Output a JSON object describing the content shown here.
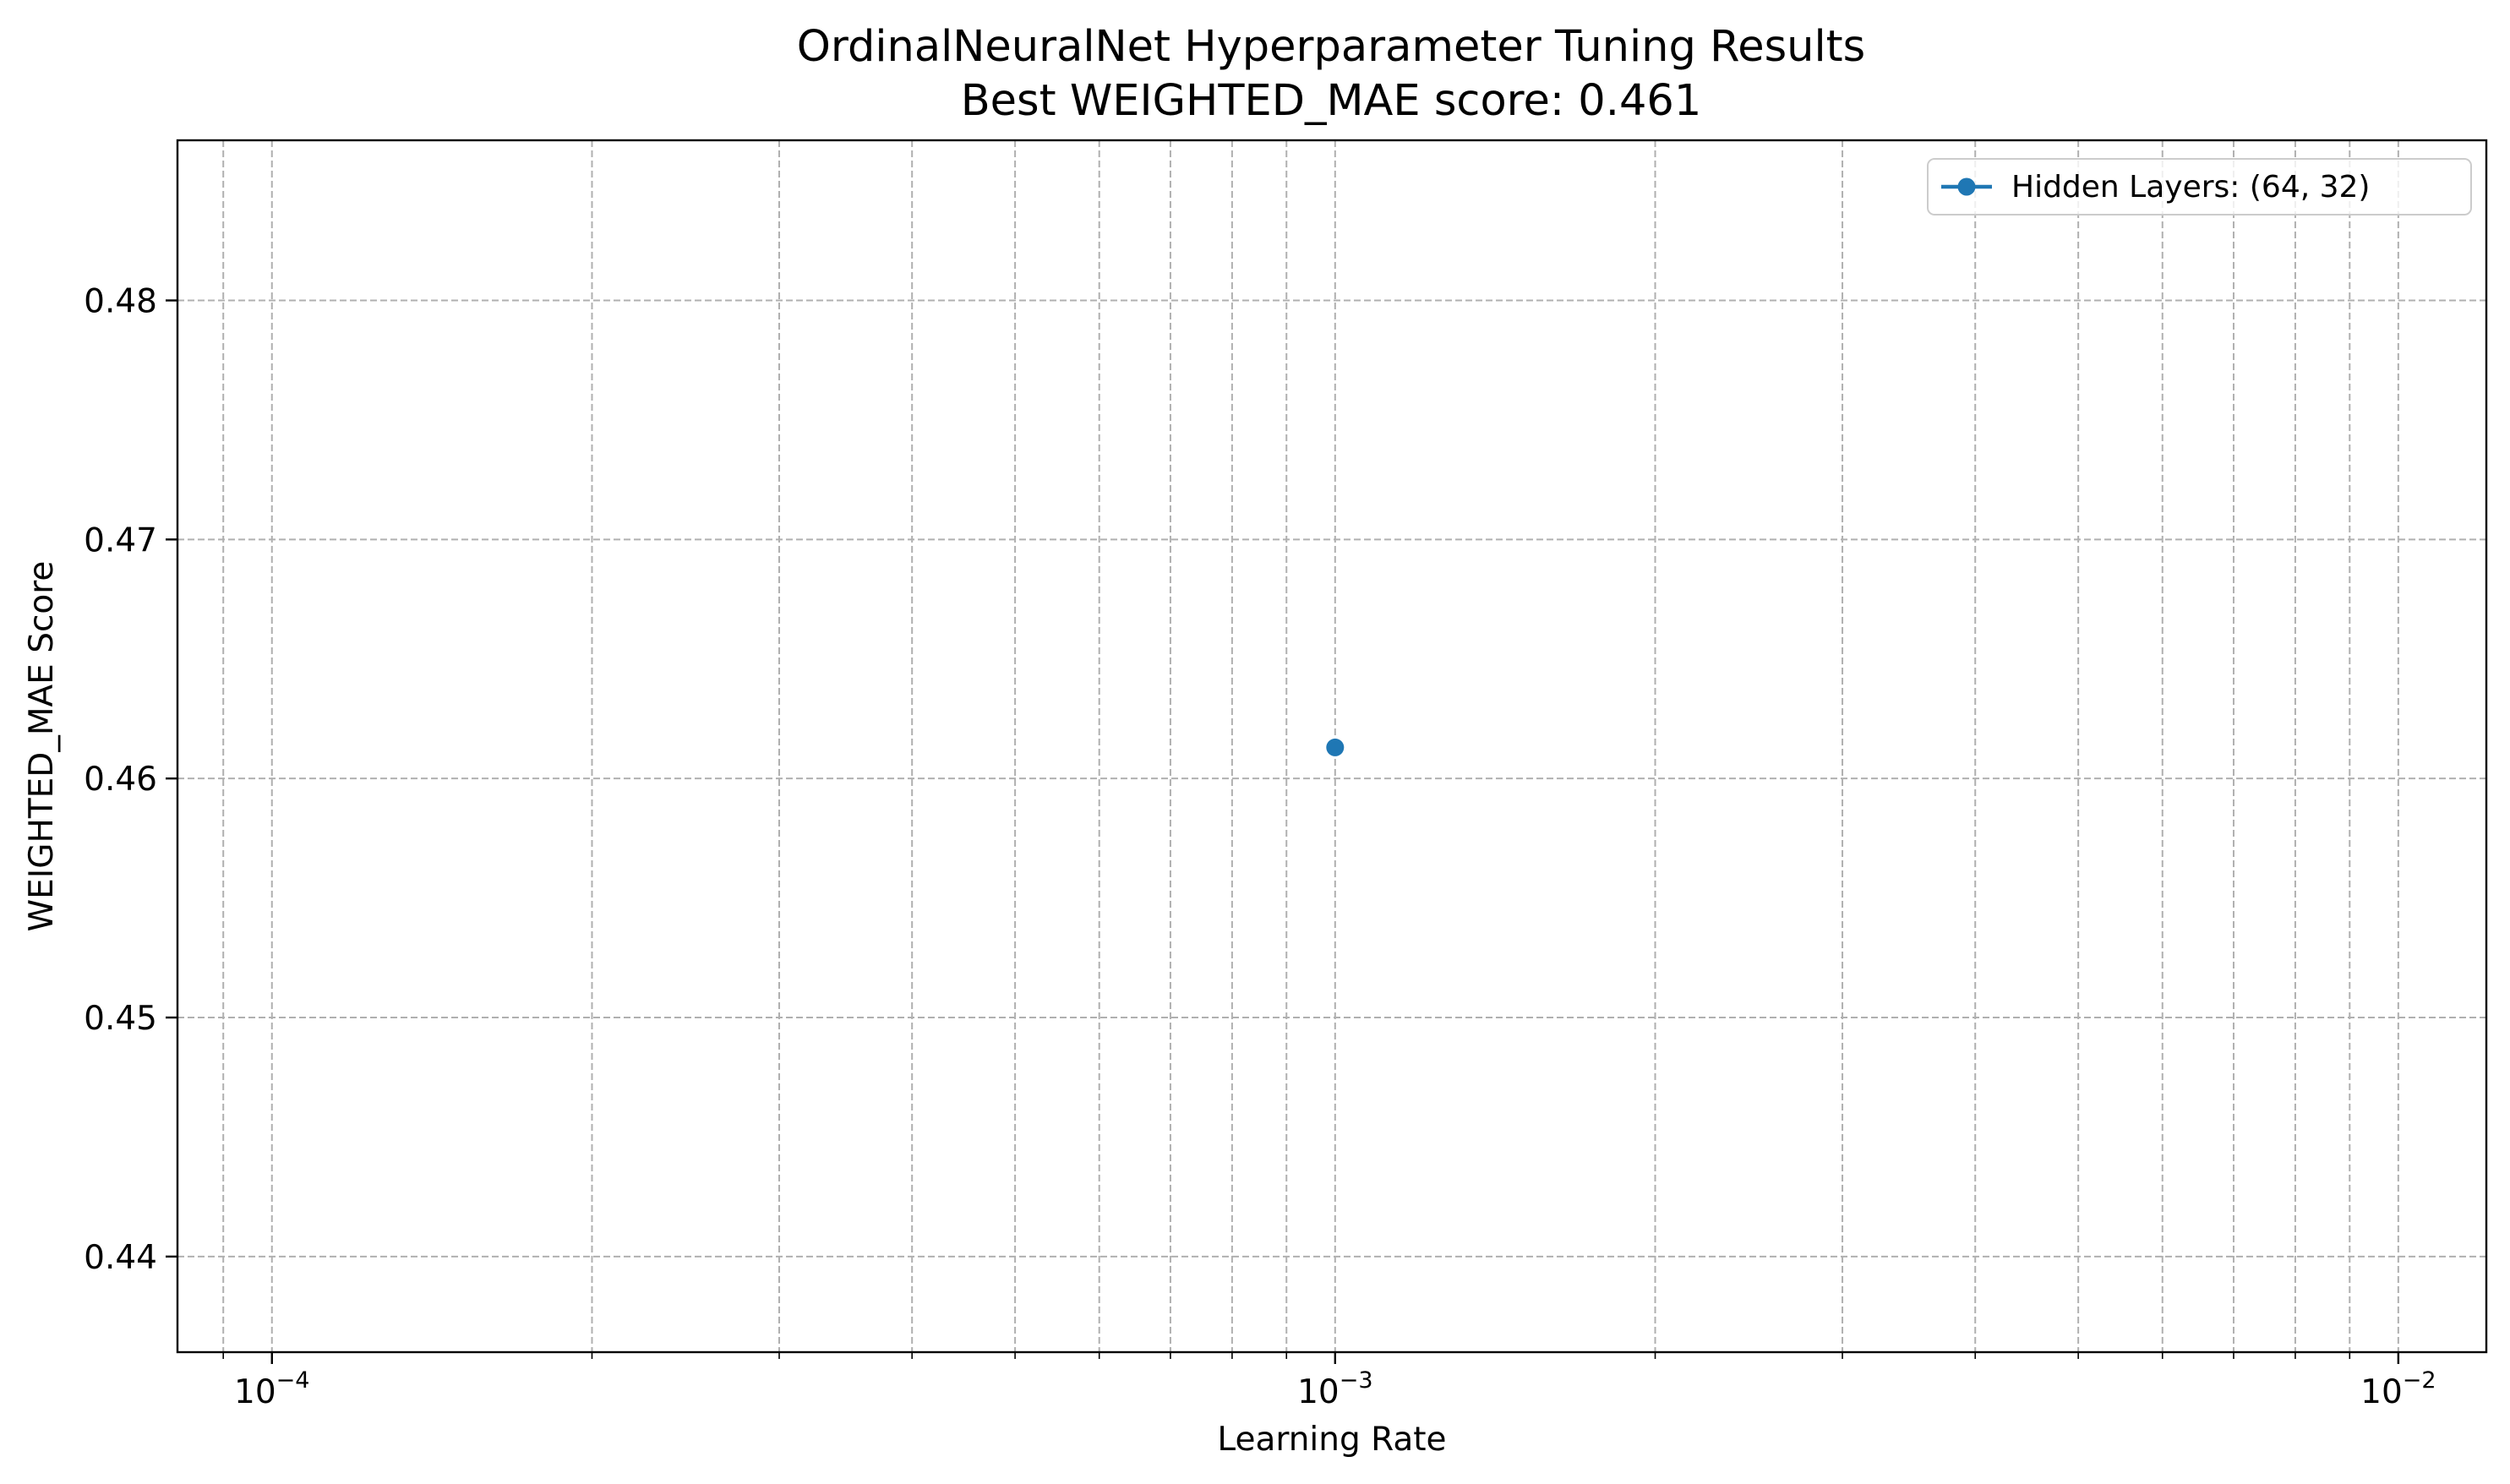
{
  "chart_data": {
    "type": "line",
    "title": "OrdinalNeuralNet Hyperparameter Tuning Results",
    "subtitle": "Best WEIGHTED_MAE score: 0.461",
    "xlabel": "Learning Rate",
    "ylabel": "WEIGHTED_MAE Score",
    "xscale": "log",
    "xlim": [
      8.15e-05,
      0.0121
    ],
    "ylim": [
      0.436,
      0.4867
    ],
    "xticks": [
      {
        "value": 0.0001,
        "base": "10",
        "exp": "−4"
      },
      {
        "value": 0.001,
        "base": "10",
        "exp": "−3"
      },
      {
        "value": 0.01,
        "base": "10",
        "exp": "−2"
      }
    ],
    "yticks": [
      {
        "value": 0.44,
        "label": "0.44"
      },
      {
        "value": 0.45,
        "label": "0.45"
      },
      {
        "value": 0.46,
        "label": "0.46"
      },
      {
        "value": 0.47,
        "label": "0.47"
      },
      {
        "value": 0.48,
        "label": "0.48"
      }
    ],
    "grid": true,
    "legend_position": "top-right",
    "series": [
      {
        "name": "Hidden Layers: (64, 32)",
        "color": "#1f77b4",
        "marker": "circle",
        "x": [
          0.001
        ],
        "y": [
          0.4613
        ]
      }
    ]
  }
}
